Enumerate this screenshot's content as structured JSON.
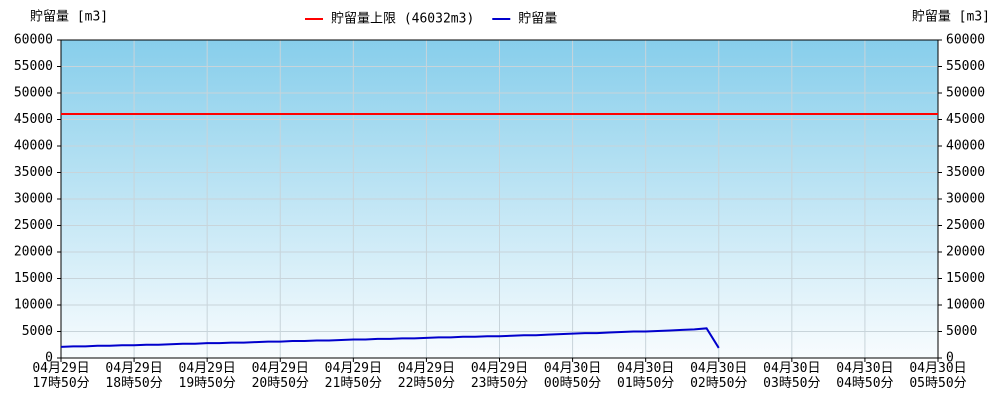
{
  "chart_data": {
    "type": "line",
    "y_label": "貯留量 [m3]",
    "categories": [
      "04月29日\n17時50分",
      null,
      null,
      null,
      null,
      null,
      "04月29日\n18時50分",
      null,
      null,
      null,
      null,
      null,
      "04月29日\n19時50分",
      null,
      null,
      null,
      null,
      null,
      "04月29日\n20時50分",
      null,
      null,
      null,
      null,
      null,
      "04月29日\n21時50分",
      null,
      null,
      null,
      null,
      null,
      "04月29日\n22時50分",
      null,
      null,
      null,
      null,
      null,
      "04月29日\n23時50分",
      null,
      null,
      null,
      null,
      null,
      "04月30日\n00時50分",
      null,
      null,
      null,
      null,
      null,
      "04月30日\n01時50分",
      null,
      null,
      null,
      null,
      null,
      "04月30日\n02時50分",
      null,
      null,
      null,
      null,
      null,
      "04月30日\n03時50分",
      null,
      null,
      null,
      null,
      null,
      "04月30日\n04時50分",
      null,
      null,
      null,
      null,
      null,
      "04月30日\n05時50分"
    ],
    "series": [
      {
        "name": "貯留量上限 (46032m3)",
        "color": "#ff0000",
        "values": [
          46032,
          46032,
          46032,
          46032,
          46032,
          46032,
          46032,
          46032,
          46032,
          46032,
          46032,
          46032,
          46032,
          46032,
          46032,
          46032,
          46032,
          46032,
          46032,
          46032,
          46032,
          46032,
          46032,
          46032,
          46032,
          46032,
          46032,
          46032,
          46032,
          46032,
          46032,
          46032,
          46032,
          46032,
          46032,
          46032,
          46032,
          46032,
          46032,
          46032,
          46032,
          46032,
          46032,
          46032,
          46032,
          46032,
          46032,
          46032,
          46032,
          46032,
          46032,
          46032,
          46032,
          46032,
          46032,
          46032,
          46032,
          46032,
          46032,
          46032,
          46032,
          46032,
          46032,
          46032,
          46032,
          46032,
          46032,
          46032,
          46032,
          46032,
          46032,
          46032,
          46032
        ]
      },
      {
        "name": "貯留量",
        "color": "#0000cc",
        "values": [
          2100,
          2200,
          2200,
          2300,
          2300,
          2400,
          2400,
          2500,
          2500,
          2600,
          2700,
          2700,
          2800,
          2800,
          2900,
          2900,
          3000,
          3100,
          3100,
          3200,
          3200,
          3300,
          3300,
          3400,
          3500,
          3500,
          3600,
          3600,
          3700,
          3700,
          3800,
          3900,
          3900,
          4000,
          4000,
          4100,
          4100,
          4200,
          4300,
          4300,
          4400,
          4500,
          4600,
          4700,
          4700,
          4800,
          4900,
          5000,
          5000,
          5100,
          5200,
          5300,
          5400,
          5600,
          1900,
          null,
          null,
          null,
          null,
          null,
          null,
          null,
          null,
          null,
          null,
          null,
          null,
          null,
          null,
          null,
          null,
          null,
          null
        ]
      }
    ],
    "ylim": [
      0,
      60000
    ],
    "yticks": [
      0,
      5000,
      10000,
      15000,
      20000,
      25000,
      30000,
      35000,
      40000,
      45000,
      50000,
      55000,
      60000
    ],
    "grid": true
  }
}
